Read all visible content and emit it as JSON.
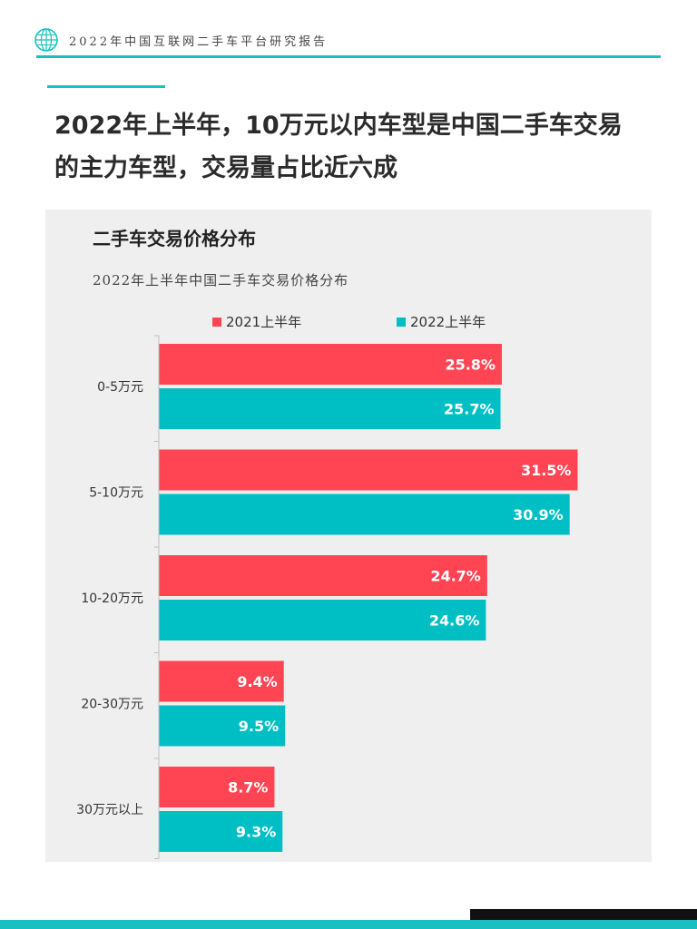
{
  "header": {
    "title": "2022年中国互联网二手车平台研究报告"
  },
  "headline": {
    "line1": "2022年上半年，10万元以内车型是中国二手车交易",
    "line2": "的主力车型，交易量占比近六成"
  },
  "panel": {
    "title": "二手车交易价格分布"
  },
  "colors": {
    "accent": "#19bfc1",
    "series_2021": "#ff4554",
    "series_2022": "#00bfc4",
    "panel_bg": "#efefef"
  },
  "chart_data": {
    "type": "bar",
    "orientation": "horizontal",
    "title": "2022年上半年中国二手车交易价格分布",
    "xlabel": "",
    "ylabel": "",
    "xlim": [
      0,
      40
    ],
    "grid": false,
    "legend_position": "top",
    "categories": [
      "0-5万元",
      "5-10万元",
      "10-20万元",
      "20-30万元",
      "30万元以上"
    ],
    "series": [
      {
        "name": "2021上半年",
        "color": "#ff4554",
        "values": [
          25.8,
          31.5,
          24.7,
          9.4,
          8.7
        ],
        "labels": [
          "25.8%",
          "31.5%",
          "24.7%",
          "9.4%",
          "8.7%"
        ]
      },
      {
        "name": "2022上半年",
        "color": "#00bfc4",
        "values": [
          25.7,
          30.9,
          24.6,
          9.5,
          9.3
        ],
        "labels": [
          "25.7%",
          "30.9%",
          "24.6%",
          "9.5%",
          "9.3%"
        ]
      }
    ]
  }
}
